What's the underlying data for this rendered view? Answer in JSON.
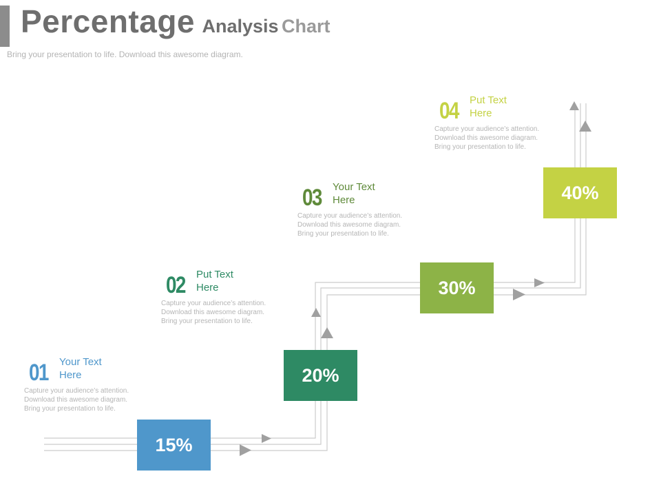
{
  "header": {
    "title_main": "Percentage",
    "title_part1": "Analysis",
    "title_part2": "Chart",
    "subtitle": "Bring your presentation to life. Download this awesome diagram."
  },
  "steps": [
    {
      "number": "01",
      "heading_line1": "Your Text",
      "heading_line2": "Here",
      "desc_line1": "Capture your audience’s attention.",
      "desc_line2": "Download this  awesome diagram.",
      "desc_line3": "Bring your presentation to life.",
      "value": "15%",
      "color": "#4f97cb"
    },
    {
      "number": "02",
      "heading_line1": "Put Text",
      "heading_line2": "Here",
      "desc_line1": "Capture your audience’s attention.",
      "desc_line2": "Download this  awesome diagram.",
      "desc_line3": "Bring your presentation to life.",
      "value": "20%",
      "color": "#2e8a64"
    },
    {
      "number": "03",
      "heading_line1": "Your Text",
      "heading_line2": "Here",
      "desc_line1": "Capture your audience’s attention.",
      "desc_line2": "Download this  awesome diagram.",
      "desc_line3": "Bring your presentation to life.",
      "value": "30%",
      "color": "#8db347"
    },
    {
      "number": "04",
      "heading_line1": "Put Text",
      "heading_line2": "Here",
      "desc_line1": "Capture your audience’s attention.",
      "desc_line2": "Download this  awesome diagram.",
      "desc_line3": "Bring your presentation to life.",
      "value": "40%",
      "color": "#c4d244"
    }
  ],
  "colors": {
    "title": "#6e6e6e",
    "connector": "#c8c8c8",
    "arrow": "#9f9f9f",
    "number_01": "#4f97cb",
    "number_02": "#2e8a64",
    "number_03": "#5f8a3a",
    "number_04": "#c4d244"
  }
}
